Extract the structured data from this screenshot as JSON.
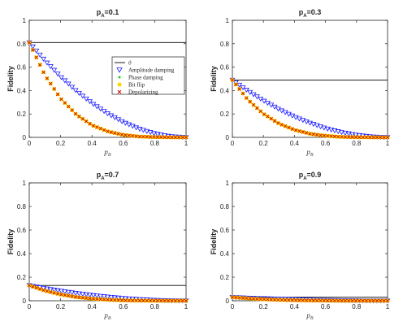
{
  "chart_data": [
    {
      "type": "scatter",
      "title": "p_A=0.1",
      "title_main": "p",
      "title_sub": "A",
      "title_rest": "=0.1",
      "xlabel": "p_B",
      "xlabel_main": "p",
      "xlabel_sub": "B",
      "ylabel": "Fidelity",
      "xlim": [
        0,
        1
      ],
      "ylim": [
        0,
        1
      ],
      "xticks": [
        "0",
        "0.2",
        "0.4",
        "0.6",
        "0.8",
        "1"
      ],
      "yticks": [
        "0",
        "0.2",
        "0.4",
        "0.6",
        "0.8",
        "1"
      ],
      "legend": {
        "placement": "upper-right",
        "entries": [
          "ϑ",
          "Amplitude damping",
          "Phase damping",
          "Bit flip",
          "Depolarizing"
        ]
      },
      "series": [
        {
          "name": "ϑ",
          "kind": "line",
          "color": "#000000",
          "x": [
            0,
            1
          ],
          "y": [
            0.81,
            0.81
          ]
        },
        {
          "name": "Amplitude damping",
          "marker": "triangle-down",
          "color": "#1a1aff",
          "x": [
            0,
            0.1,
            0.2,
            0.3,
            0.4,
            0.5,
            0.6,
            0.7,
            0.8,
            0.9,
            1.0
          ],
          "y": [
            0.81,
            0.656,
            0.518,
            0.397,
            0.292,
            0.203,
            0.13,
            0.073,
            0.032,
            0.008,
            0.0
          ]
        },
        {
          "name": "Phase damping",
          "marker": "dot",
          "color": "#22cc22",
          "x": [
            0,
            0.1,
            0.2,
            0.3,
            0.4,
            0.5,
            0.6,
            0.7,
            0.8,
            0.9,
            1.0
          ],
          "y": [
            0.81,
            0.531,
            0.332,
            0.195,
            0.104,
            0.051,
            0.021,
            0.007,
            0.002,
            0.0,
            0.0
          ]
        },
        {
          "name": "Bit flip",
          "marker": "square",
          "color": "#ffd400",
          "x": [
            0,
            0.1,
            0.2,
            0.3,
            0.4,
            0.5,
            0.6,
            0.7,
            0.8,
            0.9,
            1.0
          ],
          "y": [
            0.81,
            0.531,
            0.332,
            0.195,
            0.104,
            0.051,
            0.021,
            0.007,
            0.002,
            0.0,
            0.0
          ]
        },
        {
          "name": "Depolarizing",
          "marker": "x",
          "color": "#cc0000",
          "x": [
            0,
            0.1,
            0.2,
            0.3,
            0.4,
            0.5,
            0.6,
            0.7,
            0.8,
            0.9,
            1.0
          ],
          "y": [
            0.81,
            0.531,
            0.332,
            0.195,
            0.104,
            0.051,
            0.021,
            0.007,
            0.002,
            0.0,
            0.0
          ]
        }
      ]
    },
    {
      "type": "scatter",
      "title": "p_A=0.3",
      "title_main": "p",
      "title_sub": "A",
      "title_rest": "=0.3",
      "xlabel": "p_B",
      "xlabel_main": "p",
      "xlabel_sub": "B",
      "ylabel": "Fidelity",
      "xlim": [
        0,
        1
      ],
      "ylim": [
        0,
        1
      ],
      "xticks": [
        "0",
        "0.2",
        "0.4",
        "0.6",
        "0.8",
        "1"
      ],
      "yticks": [
        "0",
        "0.2",
        "0.4",
        "0.6",
        "0.8",
        "1"
      ],
      "series": [
        {
          "name": "ϑ",
          "kind": "line",
          "color": "#000000",
          "x": [
            0,
            1
          ],
          "y": [
            0.49,
            0.49
          ]
        },
        {
          "name": "Amplitude damping",
          "marker": "triangle-down",
          "color": "#1a1aff",
          "x": [
            0,
            0.1,
            0.2,
            0.3,
            0.4,
            0.5,
            0.6,
            0.7,
            0.8,
            0.9,
            1.0
          ],
          "y": [
            0.49,
            0.397,
            0.314,
            0.24,
            0.176,
            0.123,
            0.078,
            0.044,
            0.02,
            0.005,
            0.0
          ]
        },
        {
          "name": "Phase damping",
          "marker": "dot",
          "color": "#22cc22",
          "x": [
            0,
            0.1,
            0.2,
            0.3,
            0.4,
            0.5,
            0.6,
            0.7,
            0.8,
            0.9,
            1.0
          ],
          "y": [
            0.49,
            0.321,
            0.201,
            0.118,
            0.064,
            0.031,
            0.013,
            0.004,
            0.001,
            0.0,
            0.0
          ]
        },
        {
          "name": "Bit flip",
          "marker": "square",
          "color": "#ffd400",
          "x": [
            0,
            0.1,
            0.2,
            0.3,
            0.4,
            0.5,
            0.6,
            0.7,
            0.8,
            0.9,
            1.0
          ],
          "y": [
            0.49,
            0.321,
            0.201,
            0.118,
            0.064,
            0.031,
            0.013,
            0.004,
            0.001,
            0.0,
            0.0
          ]
        },
        {
          "name": "Depolarizing",
          "marker": "x",
          "color": "#cc0000",
          "x": [
            0,
            0.1,
            0.2,
            0.3,
            0.4,
            0.5,
            0.6,
            0.7,
            0.8,
            0.9,
            1.0
          ],
          "y": [
            0.49,
            0.321,
            0.201,
            0.118,
            0.064,
            0.031,
            0.013,
            0.004,
            0.001,
            0.0,
            0.0
          ]
        }
      ]
    },
    {
      "type": "scatter",
      "title": "p_A=0.7",
      "title_main": "p",
      "title_sub": "A",
      "title_rest": "=0.7",
      "xlabel": "p_B",
      "xlabel_main": "p",
      "xlabel_sub": "B",
      "ylabel": "Fidelity",
      "xlim": [
        0,
        1
      ],
      "ylim": [
        0,
        1
      ],
      "xticks": [
        "0",
        "0.2",
        "0.4",
        "0.6",
        "0.8",
        "1"
      ],
      "yticks": [
        "0",
        "0.2",
        "0.4",
        "0.6",
        "0.8",
        "1"
      ],
      "series": [
        {
          "name": "ϑ",
          "kind": "line",
          "color": "#000000",
          "x": [
            0,
            1
          ],
          "y": [
            0.13,
            0.13
          ]
        },
        {
          "name": "Amplitude damping",
          "marker": "triangle-down",
          "color": "#1a1aff",
          "x": [
            0,
            0.1,
            0.2,
            0.3,
            0.4,
            0.5,
            0.6,
            0.7,
            0.8,
            0.9,
            1.0
          ],
          "y": [
            0.13,
            0.105,
            0.083,
            0.064,
            0.047,
            0.033,
            0.021,
            0.012,
            0.005,
            0.001,
            0.0
          ]
        },
        {
          "name": "Phase damping",
          "marker": "dot",
          "color": "#22cc22",
          "x": [
            0,
            0.1,
            0.2,
            0.3,
            0.4,
            0.5,
            0.6,
            0.7,
            0.8,
            0.9,
            1.0
          ],
          "y": [
            0.13,
            0.085,
            0.053,
            0.031,
            0.017,
            0.008,
            0.003,
            0.001,
            0.0,
            0.0,
            0.0
          ]
        },
        {
          "name": "Bit flip",
          "marker": "square",
          "color": "#ffd400",
          "x": [
            0,
            0.1,
            0.2,
            0.3,
            0.4,
            0.5,
            0.6,
            0.7,
            0.8,
            0.9,
            1.0
          ],
          "y": [
            0.13,
            0.085,
            0.053,
            0.031,
            0.017,
            0.008,
            0.003,
            0.001,
            0.0,
            0.0,
            0.0
          ]
        },
        {
          "name": "Depolarizing",
          "marker": "x",
          "color": "#cc0000",
          "x": [
            0,
            0.1,
            0.2,
            0.3,
            0.4,
            0.5,
            0.6,
            0.7,
            0.8,
            0.9,
            1.0
          ],
          "y": [
            0.13,
            0.085,
            0.053,
            0.031,
            0.017,
            0.008,
            0.003,
            0.001,
            0.0,
            0.0,
            0.0
          ]
        }
      ]
    },
    {
      "type": "scatter",
      "title": "p_A=0.9",
      "title_main": "p",
      "title_sub": "A",
      "title_rest": "=0.9",
      "xlabel": "p_B",
      "xlabel_main": "p",
      "xlabel_sub": "B",
      "ylabel": "Fidelity",
      "xlim": [
        0,
        1
      ],
      "ylim": [
        0,
        1
      ],
      "xticks": [
        "0",
        "0.2",
        "0.4",
        "0.6",
        "0.8",
        "1"
      ],
      "yticks": [
        "0",
        "0.2",
        "0.4",
        "0.6",
        "0.8",
        "1"
      ],
      "series": [
        {
          "name": "ϑ",
          "kind": "line",
          "color": "#000000",
          "x": [
            0,
            1
          ],
          "y": [
            0.03,
            0.03
          ]
        },
        {
          "name": "Amplitude damping",
          "marker": "triangle-down",
          "color": "#1a1aff",
          "x": [
            0,
            0.1,
            0.2,
            0.3,
            0.4,
            0.5,
            0.6,
            0.7,
            0.8,
            0.9,
            1.0
          ],
          "y": [
            0.03,
            0.024,
            0.019,
            0.015,
            0.011,
            0.008,
            0.005,
            0.003,
            0.001,
            0.0,
            0.0
          ]
        },
        {
          "name": "Phase damping",
          "marker": "dot",
          "color": "#22cc22",
          "x": [
            0,
            0.1,
            0.2,
            0.3,
            0.4,
            0.5,
            0.6,
            0.7,
            0.8,
            0.9,
            1.0
          ],
          "y": [
            0.03,
            0.02,
            0.012,
            0.007,
            0.004,
            0.002,
            0.001,
            0.0,
            0.0,
            0.0,
            0.0
          ]
        },
        {
          "name": "Bit flip",
          "marker": "square",
          "color": "#ffd400",
          "x": [
            0,
            0.1,
            0.2,
            0.3,
            0.4,
            0.5,
            0.6,
            0.7,
            0.8,
            0.9,
            1.0
          ],
          "y": [
            0.03,
            0.02,
            0.012,
            0.007,
            0.004,
            0.002,
            0.001,
            0.0,
            0.0,
            0.0,
            0.0
          ]
        },
        {
          "name": "Depolarizing",
          "marker": "x",
          "color": "#cc0000",
          "x": [
            0,
            0.1,
            0.2,
            0.3,
            0.4,
            0.5,
            0.6,
            0.7,
            0.8,
            0.9,
            1.0
          ],
          "y": [
            0.03,
            0.02,
            0.012,
            0.007,
            0.004,
            0.002,
            0.001,
            0.0,
            0.0,
            0.0,
            0.0
          ]
        }
      ]
    }
  ]
}
